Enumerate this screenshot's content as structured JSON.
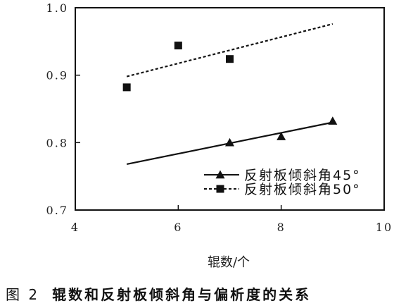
{
  "caption": {
    "figure_number": "图 2",
    "text": "辊数和反射板倾斜角与偏析度的关系"
  },
  "chart_data": {
    "type": "scatter",
    "title": "",
    "xlabel": "辊数/个",
    "ylabel": "",
    "xlim": [
      4,
      10
    ],
    "ylim": [
      0.7,
      1.0
    ],
    "x_ticks": [
      4,
      6,
      8,
      10
    ],
    "x_tick_labels": [
      "4",
      "6",
      "8",
      "10"
    ],
    "y_ticks": [
      0.7,
      0.8,
      0.9,
      1.0
    ],
    "y_tick_labels": [
      "0.7",
      "0.8",
      "0.9",
      "1.0"
    ],
    "grid": false,
    "legend_position": "bottom-right",
    "series": [
      {
        "name": "反射板倾斜角45°",
        "marker": "triangle",
        "line_style": "solid",
        "color": "#111111",
        "points": [
          {
            "x": 7,
            "y": 0.8
          },
          {
            "x": 8,
            "y": 0.809
          },
          {
            "x": 9,
            "y": 0.832
          }
        ],
        "fit": [
          {
            "x": 5,
            "y": 0.768
          },
          {
            "x": 9,
            "y": 0.83
          }
        ]
      },
      {
        "name": "反射板倾斜角50°",
        "marker": "square",
        "line_style": "dashed",
        "color": "#111111",
        "points": [
          {
            "x": 5,
            "y": 0.882
          },
          {
            "x": 6,
            "y": 0.944
          },
          {
            "x": 7,
            "y": 0.924
          }
        ],
        "fit": [
          {
            "x": 5,
            "y": 0.898
          },
          {
            "x": 9,
            "y": 0.976
          }
        ]
      }
    ]
  }
}
